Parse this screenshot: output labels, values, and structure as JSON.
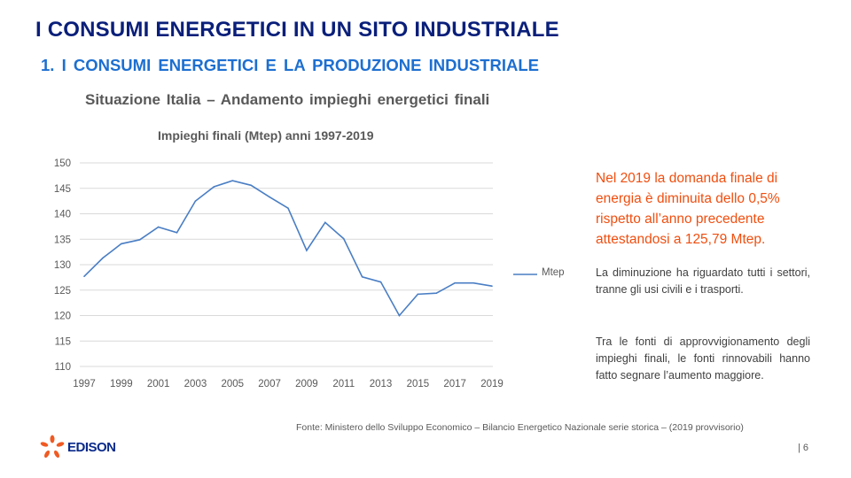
{
  "header": {
    "title": "I CONSUMI ENERGETICI IN UN SITO INDUSTRIALE",
    "subtitle": "1. I CONSUMI  ENERGETICI  E LA PRODUZIONE  INDUSTRIALE"
  },
  "chart_heading": "Situazione  Italia – Andamento  impieghi energetici finali",
  "chart_data": {
    "type": "line",
    "title": "Impieghi finali (Mtep) anni 1997-2019",
    "x": [
      1997,
      1998,
      1999,
      2000,
      2001,
      2002,
      2003,
      2004,
      2005,
      2006,
      2007,
      2008,
      2009,
      2010,
      2011,
      2012,
      2013,
      2014,
      2015,
      2016,
      2017,
      2018,
      2019
    ],
    "series": [
      {
        "name": "Mtep",
        "values": [
          127.7,
          131.3,
          134.1,
          134.9,
          137.4,
          136.3,
          142.5,
          145.3,
          146.5,
          145.6,
          143.3,
          141.1,
          132.8,
          138.3,
          135.1,
          127.6,
          126.6,
          120.0,
          124.2,
          124.4,
          126.4,
          126.4,
          125.8
        ],
        "color": "#4a7ec4"
      }
    ],
    "xticks": [
      "1997",
      "1999",
      "2001",
      "2003",
      "2005",
      "2007",
      "2009",
      "2011",
      "2013",
      "2015",
      "2017",
      "2019"
    ],
    "yticks": [
      "110",
      "115",
      "120",
      "125",
      "130",
      "135",
      "140",
      "145",
      "150"
    ],
    "ylim": [
      110,
      150
    ],
    "grid": true,
    "legend": "right"
  },
  "text": {
    "highlight": "Nel 2019 la domanda finale di energia è diminuita dello 0,5% rispetto all’anno precedente attestandosi a 125,79 Mtep.",
    "para1": "La diminuzione ha riguardato tutti i settori, tranne gli usi civili e i trasporti.",
    "para2": "Tra le fonti di approvvigionamento degli impieghi finali, le fonti rinnovabili hanno fatto segnare l’aumento maggiore."
  },
  "footer": {
    "source": "Fonte:  Ministero dello Sviluppo Economico – Bilancio Energetico Nazionale serie storica – (2019 provvisorio)",
    "page": "| 6",
    "logo": "EDISON"
  }
}
